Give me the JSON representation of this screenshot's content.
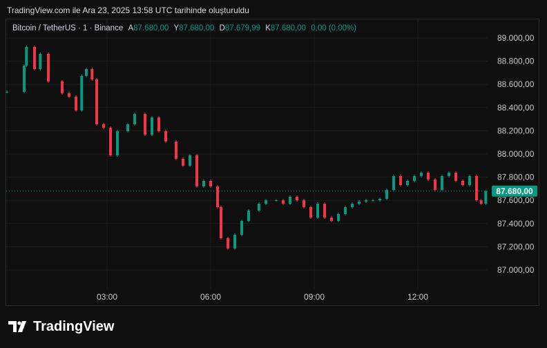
{
  "header": {
    "caption": "TradingView.com ile Ara 23, 2025 13:58 UTC tarihinde oluşturuldu"
  },
  "legend": {
    "symbol": "Bitcoin / TetherUS · 1 · Binance",
    "open_label": "A",
    "open": "87.680,00",
    "high_label": "Y",
    "high": "87.680,00",
    "low_label": "D",
    "low": "87.679,99",
    "close_label": "K",
    "close": "87.680,00",
    "change": "0,00 (0,00%)"
  },
  "logo": {
    "text": "TradingView"
  },
  "colors": {
    "up": "#089981",
    "down": "#f23645",
    "background": "#0f0f0f",
    "grid": "#1e1e1e"
  },
  "chart_data": {
    "type": "candlestick",
    "title": "",
    "x_ticks": [
      "03:00",
      "06:00",
      "09:00",
      "12:00"
    ],
    "y_ticks": [
      "89.000,00",
      "88.800,00",
      "88.600,00",
      "88.400,00",
      "88.200,00",
      "88.000,00",
      "87.800,00",
      "87.600,00",
      "87.400,00",
      "87.200,00",
      "87.000,00"
    ],
    "ylim": [
      86940,
      89120
    ],
    "xlim": [
      "00:00",
      "14:08"
    ],
    "last_price": "87.680,00",
    "last_price_value": 87680,
    "closes": [
      [
        "00:06",
        88536
      ],
      [
        "00:36",
        88762
      ],
      [
        "00:40",
        88923
      ],
      [
        "00:54",
        88732
      ],
      [
        "01:04",
        88863
      ],
      [
        "01:18",
        88625
      ],
      [
        "01:42",
        88524
      ],
      [
        "01:54",
        88494
      ],
      [
        "02:06",
        88375
      ],
      [
        "02:16",
        88673
      ],
      [
        "02:24",
        88732
      ],
      [
        "02:34",
        88643
      ],
      [
        "02:42",
        88256
      ],
      [
        "02:54",
        88226
      ],
      [
        "03:06",
        87988
      ],
      [
        "03:18",
        88196
      ],
      [
        "03:36",
        88256
      ],
      [
        "03:48",
        88345
      ],
      [
        "04:06",
        88167
      ],
      [
        "04:18",
        88315
      ],
      [
        "04:30",
        88196
      ],
      [
        "04:42",
        88107
      ],
      [
        "05:00",
        87958
      ],
      [
        "05:12",
        87899
      ],
      [
        "05:24",
        87988
      ],
      [
        "05:36",
        87720
      ],
      [
        "05:48",
        87768
      ],
      [
        "06:00",
        87720
      ],
      [
        "06:12",
        87542
      ],
      [
        "06:18",
        87274
      ],
      [
        "06:30",
        87185
      ],
      [
        "06:42",
        87304
      ],
      [
        "06:54",
        87423
      ],
      [
        "07:06",
        87512
      ],
      [
        "07:24",
        87571
      ],
      [
        "07:36",
        87601
      ],
      [
        "07:54",
        87601
      ],
      [
        "08:06",
        87571
      ],
      [
        "08:18",
        87631
      ],
      [
        "08:30",
        87601
      ],
      [
        "08:42",
        87542
      ],
      [
        "08:54",
        87452
      ],
      [
        "09:06",
        87571
      ],
      [
        "09:18",
        87452
      ],
      [
        "09:30",
        87423
      ],
      [
        "09:42",
        87482
      ],
      [
        "09:54",
        87542
      ],
      [
        "10:06",
        87571
      ],
      [
        "10:18",
        87589
      ],
      [
        "10:30",
        87601
      ],
      [
        "10:42",
        87601
      ],
      [
        "10:54",
        87613
      ],
      [
        "11:06",
        87690
      ],
      [
        "11:18",
        87810
      ],
      [
        "11:30",
        87732
      ],
      [
        "11:42",
        87768
      ],
      [
        "11:54",
        87810
      ],
      [
        "12:06",
        87839
      ],
      [
        "12:18",
        87780
      ],
      [
        "12:30",
        87690
      ],
      [
        "12:42",
        87810
      ],
      [
        "12:54",
        87839
      ],
      [
        "13:06",
        87768
      ],
      [
        "13:18",
        87732
      ],
      [
        "13:30",
        87810
      ],
      [
        "13:42",
        87601
      ],
      [
        "13:50",
        87571
      ],
      [
        "13:58",
        87680
      ]
    ]
  }
}
